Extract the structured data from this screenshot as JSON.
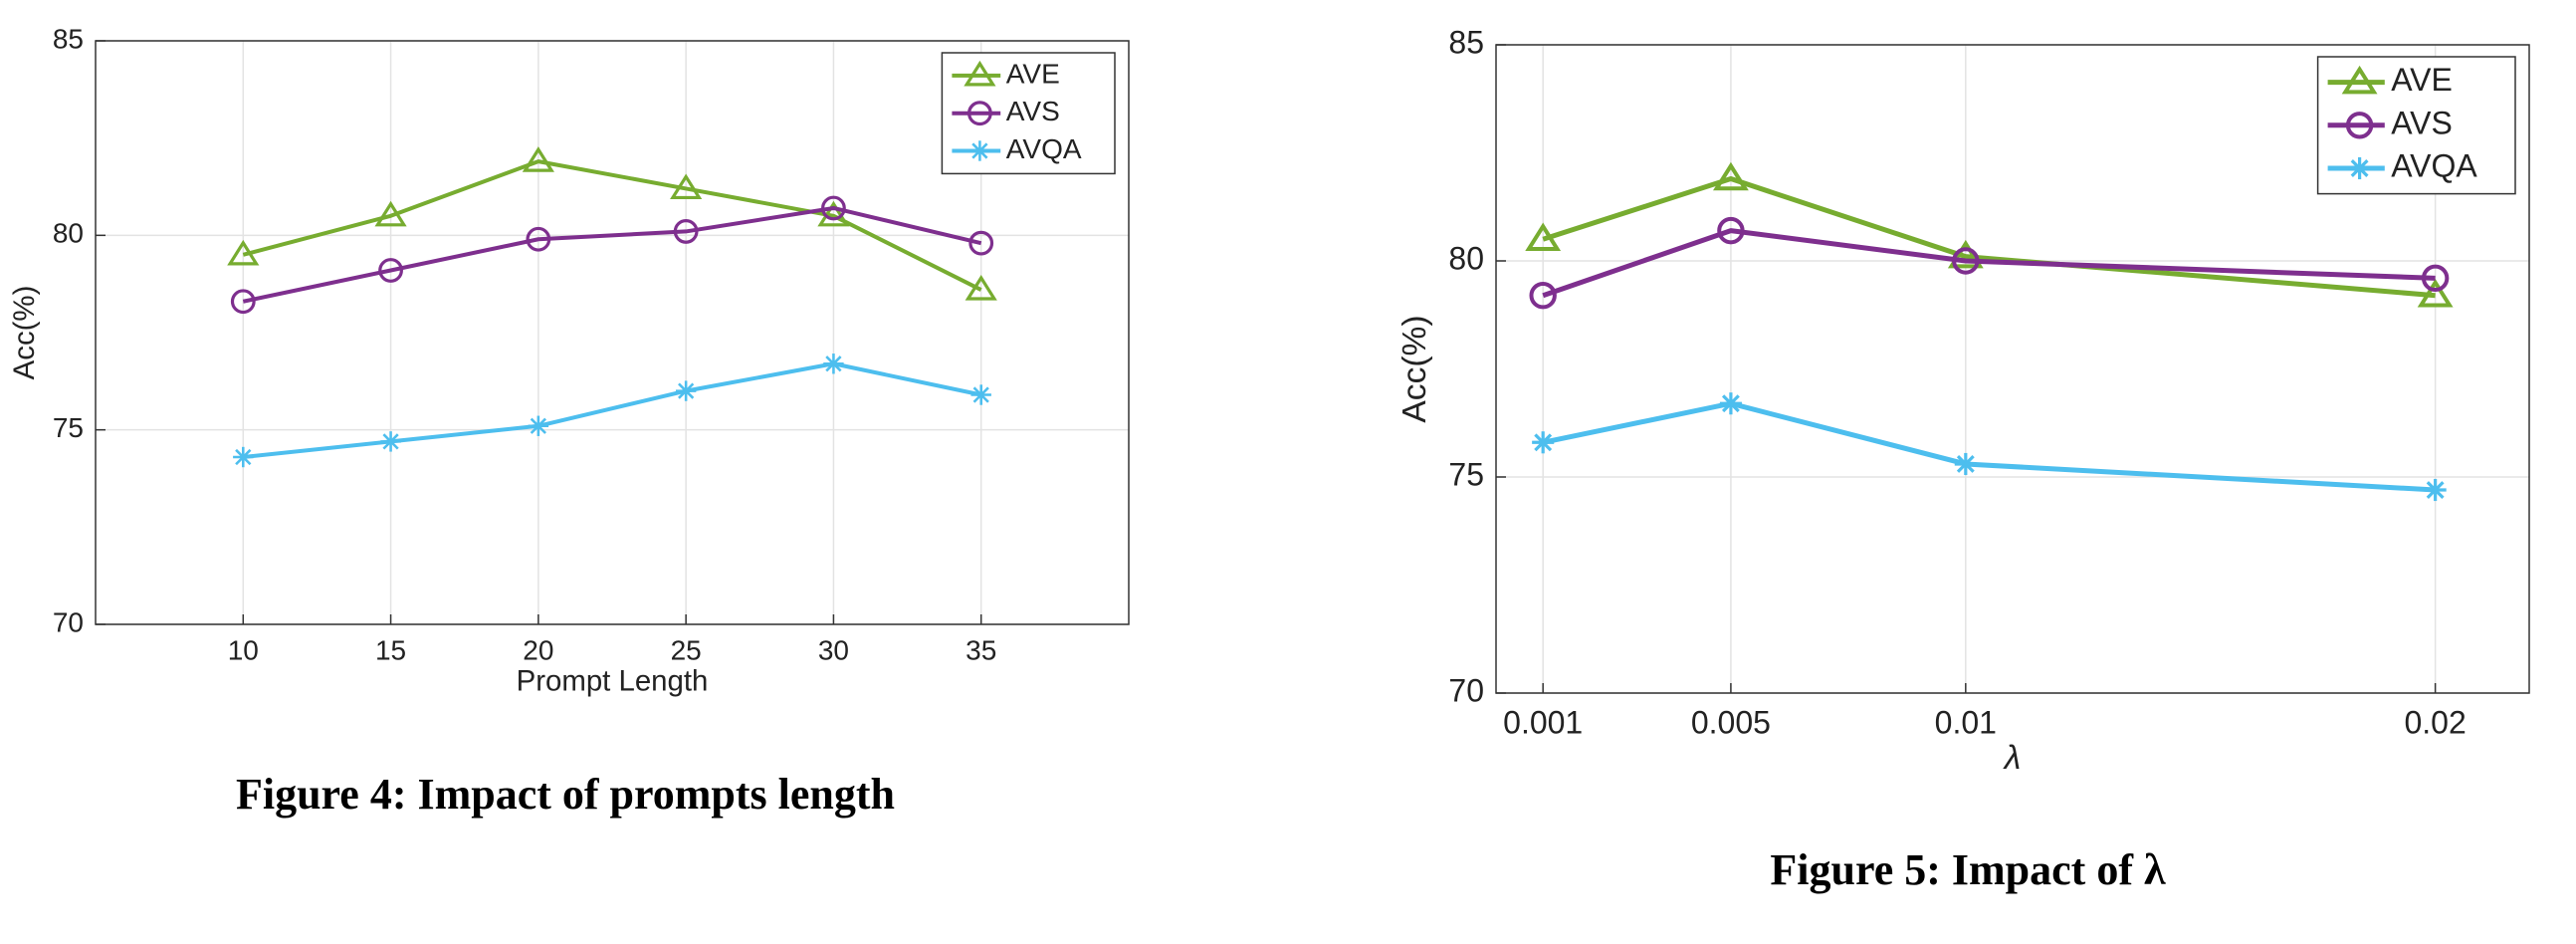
{
  "chart_data": [
    {
      "type": "line",
      "caption": "Figure 4: Impact of prompts length",
      "xlabel": "Prompt Length",
      "ylabel": "Acc(%)",
      "x": [
        10,
        15,
        20,
        25,
        30,
        35
      ],
      "xlim": [
        5,
        40
      ],
      "xticks": [
        10,
        15,
        20,
        25,
        30,
        35
      ],
      "ylim": [
        70,
        85
      ],
      "yticks": [
        70,
        75,
        80,
        85
      ],
      "grid": true,
      "legend": "upper right",
      "series": [
        {
          "name": "AVE",
          "color": "#77ac30",
          "marker": "triangle",
          "values": [
            79.5,
            80.5,
            81.9,
            81.2,
            80.5,
            78.6
          ]
        },
        {
          "name": "AVS",
          "color": "#7e2f8e",
          "marker": "circle",
          "values": [
            78.3,
            79.1,
            79.9,
            80.1,
            80.7,
            79.8
          ]
        },
        {
          "name": "AVQA",
          "color": "#4dbeee",
          "marker": "asterisk",
          "values": [
            74.3,
            74.7,
            75.1,
            76.0,
            76.7,
            75.9
          ]
        }
      ]
    },
    {
      "type": "line",
      "caption": "Figure 5: Impact of λ",
      "xlabel": "λ",
      "ylabel": "Acc(%)",
      "x": [
        0.001,
        0.005,
        0.01,
        0.02
      ],
      "xlim": [
        0,
        0.022
      ],
      "xticks": [
        0.001,
        0.005,
        0.01,
        0.02
      ],
      "ylim": [
        70,
        85
      ],
      "yticks": [
        70,
        75,
        80,
        85
      ],
      "grid": true,
      "legend": "upper right",
      "series": [
        {
          "name": "AVE",
          "color": "#77ac30",
          "marker": "triangle",
          "values": [
            80.5,
            81.9,
            80.1,
            79.2
          ]
        },
        {
          "name": "AVS",
          "color": "#7e2f8e",
          "marker": "circle",
          "values": [
            79.2,
            80.7,
            80.0,
            79.6
          ]
        },
        {
          "name": "AVQA",
          "color": "#4dbeee",
          "marker": "asterisk",
          "values": [
            75.8,
            76.7,
            75.3,
            74.7
          ]
        }
      ]
    }
  ]
}
